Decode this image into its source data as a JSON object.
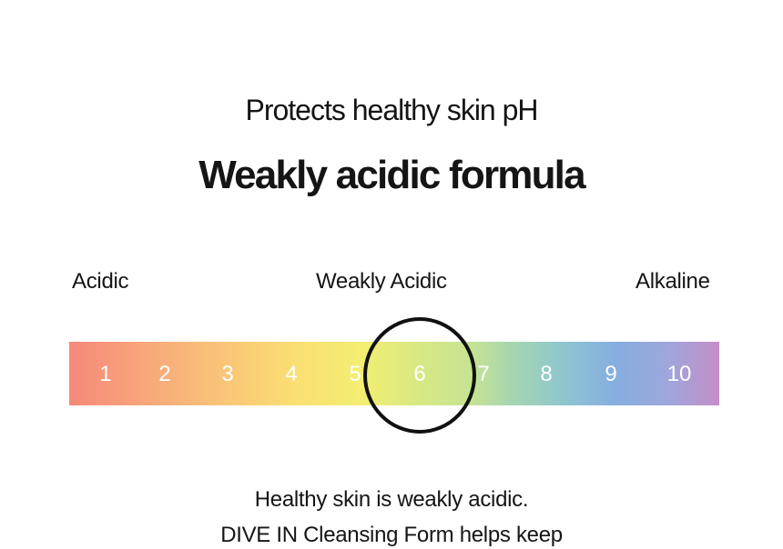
{
  "subtitle": "Protects healthy skin pH",
  "title": "Weakly acidic formula",
  "scale": {
    "left_label": "Acidic",
    "middle_label": "Weakly Acidic",
    "right_label": "Alkaline",
    "numbers": [
      "1",
      "2",
      "3",
      "4",
      "5",
      "6",
      "7",
      "8",
      "9",
      "10"
    ],
    "highlighted": "6"
  },
  "body": {
    "line1": "Healthy skin is weakly acidic.",
    "line2": "DIVE IN Cleansing Form helps keep"
  }
}
